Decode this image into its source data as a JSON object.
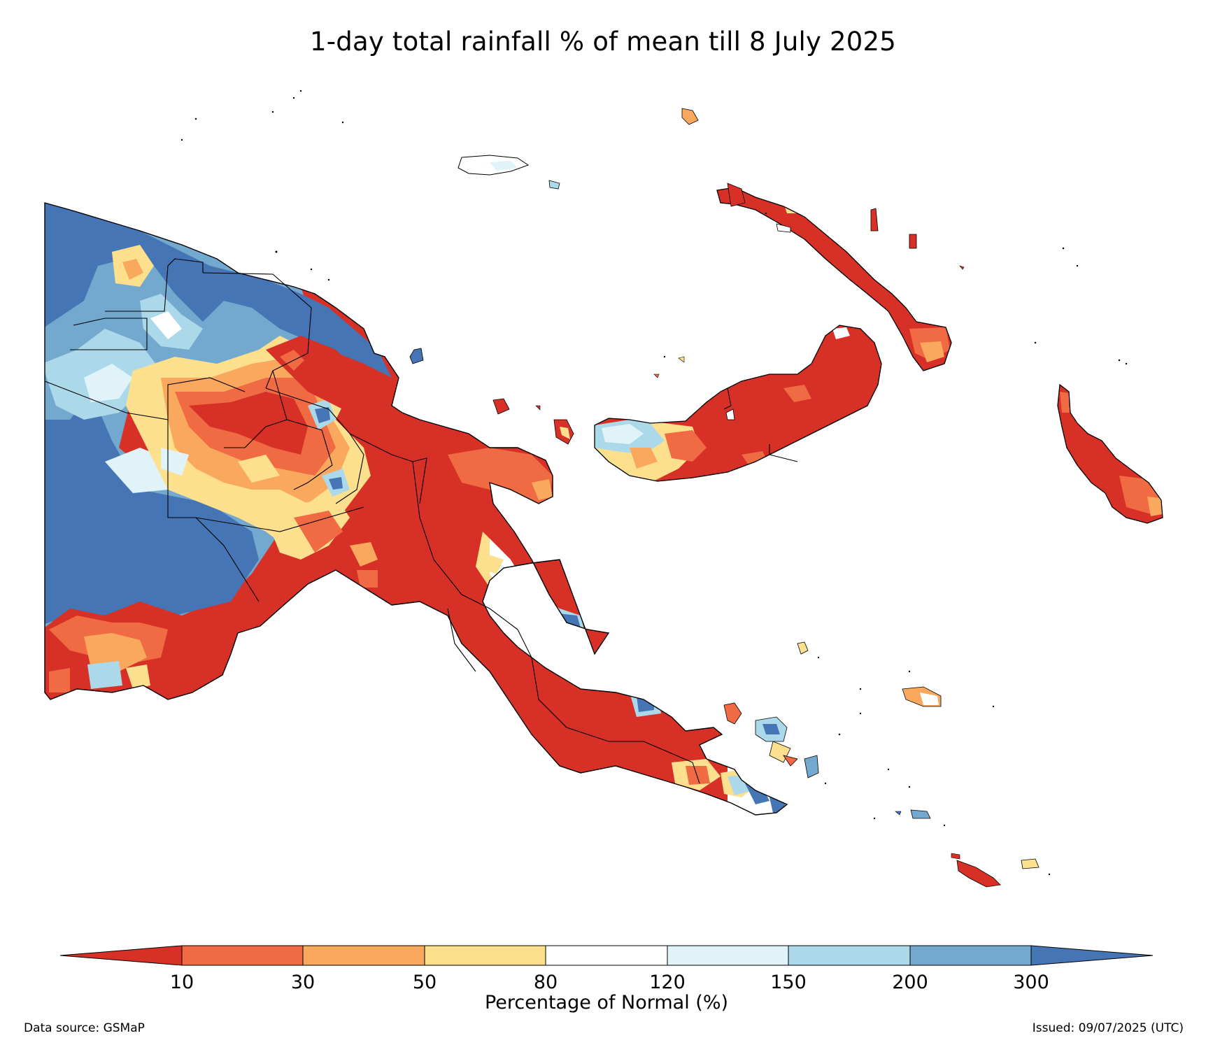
{
  "title": "1-day total rainfall % of mean till 8 July 2025",
  "colorbar": {
    "label": "Percentage of Normal (%)",
    "ticks": [
      "10",
      "30",
      "50",
      "80",
      "120",
      "150",
      "200",
      "300"
    ],
    "bins": [
      {
        "range": "<10",
        "color": "#d73027"
      },
      {
        "range": "10-30",
        "color": "#f06b43"
      },
      {
        "range": "30-50",
        "color": "#f9a85d"
      },
      {
        "range": "50-80",
        "color": "#fde08e"
      },
      {
        "range": "80-120",
        "color": "#ffffff"
      },
      {
        "range": "120-150",
        "color": "#e0f3f8"
      },
      {
        "range": "150-200",
        "color": "#abd9e9"
      },
      {
        "range": "200-300",
        "color": "#74a9cf"
      },
      {
        "range": ">300",
        "color": "#4575b4"
      }
    ]
  },
  "footer": {
    "source": "Data source: GSMaP",
    "issued": "Issued: 09/07/2025 (UTC)"
  }
}
